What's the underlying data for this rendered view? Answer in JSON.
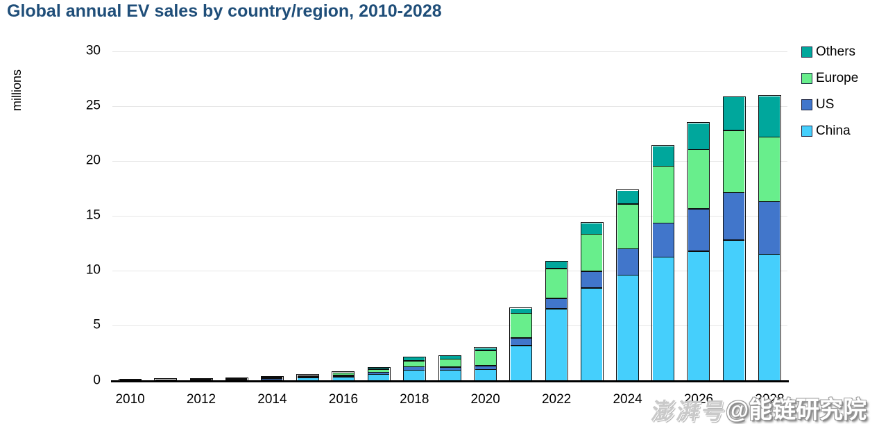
{
  "title": "Global annual EV sales by country/region, 2010-2028",
  "title_color": "#1F4E79",
  "chart_data": {
    "type": "bar",
    "stacked": true,
    "title": "Global annual EV sales by country/region, 2010-2028",
    "xlabel": "",
    "ylabel": "millions",
    "ylim": [
      0,
      30
    ],
    "yticks": [
      0,
      5,
      10,
      15,
      20,
      25,
      30
    ],
    "grid": "horizontal",
    "grid_color": "#E6E6E6",
    "bar_outline_color": "#0D0D0D",
    "legend_position": "top-right",
    "legend_order_top_to_bottom": [
      "Others",
      "Europe",
      "US",
      "China"
    ],
    "categories": [
      "2010",
      "2011",
      "2012",
      "2013",
      "2014",
      "2015",
      "2016",
      "2017",
      "2018",
      "2019",
      "2020",
      "2021",
      "2022",
      "2023",
      "2024",
      "2025",
      "2026",
      "2027",
      "2028"
    ],
    "xtick_labels": [
      "2010",
      "2012",
      "2014",
      "2016",
      "2018",
      "2020",
      "2022",
      "2024",
      "2026",
      "2028"
    ],
    "series": [
      {
        "name": "China",
        "color": "#45CFFC",
        "values": [
          0.02,
          0.03,
          0.05,
          0.05,
          0.08,
          0.25,
          0.35,
          0.58,
          0.95,
          0.95,
          1.0,
          3.2,
          6.55,
          8.45,
          9.6,
          11.25,
          11.8,
          12.8,
          11.5
        ]
      },
      {
        "name": "US",
        "color": "#4176CB",
        "values": [
          0.01,
          0.02,
          0.05,
          0.09,
          0.11,
          0.09,
          0.14,
          0.17,
          0.32,
          0.3,
          0.36,
          0.7,
          0.95,
          1.5,
          2.4,
          3.1,
          3.85,
          4.35,
          4.8
        ]
      },
      {
        "name": "Europe",
        "color": "#68EE8C",
        "values": [
          0.01,
          0.03,
          0.04,
          0.05,
          0.09,
          0.12,
          0.2,
          0.3,
          0.55,
          0.7,
          1.4,
          2.25,
          2.7,
          3.4,
          4.1,
          5.2,
          5.4,
          5.65,
          5.9
        ]
      },
      {
        "name": "Others",
        "color": "#00A79C",
        "values": [
          0.01,
          0.02,
          0.02,
          0.02,
          0.04,
          0.04,
          0.06,
          0.11,
          0.28,
          0.28,
          0.2,
          0.4,
          0.63,
          1.0,
          1.2,
          1.8,
          2.4,
          3.0,
          3.7
        ]
      }
    ],
    "totals": [
      0.05,
      0.1,
      0.16,
      0.21,
      0.32,
      0.5,
      0.75,
      1.16,
      2.1,
      2.23,
      2.96,
      6.55,
      10.83,
      14.35,
      17.3,
      21.35,
      23.45,
      25.8,
      25.9
    ]
  },
  "legend": {
    "items": [
      {
        "label": "Others",
        "color": "#00A79C"
      },
      {
        "label": "Europe",
        "color": "#68EE8C"
      },
      {
        "label": "US",
        "color": "#4176CB"
      },
      {
        "label": "China",
        "color": "#45CFFC"
      }
    ]
  },
  "watermarks": {
    "platform": "澎湃号",
    "account": "@能链研究院"
  }
}
